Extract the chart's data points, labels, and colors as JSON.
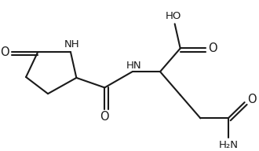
{
  "bg_color": "#ffffff",
  "line_color": "#1a1a1a",
  "text_color": "#1a1a1a",
  "bond_lw": 1.5,
  "font_size": 9.5,
  "xlim": [
    0,
    10
  ],
  "ylim": [
    0,
    6
  ],
  "figsize": [
    3.3,
    1.92
  ],
  "dpi": 100
}
